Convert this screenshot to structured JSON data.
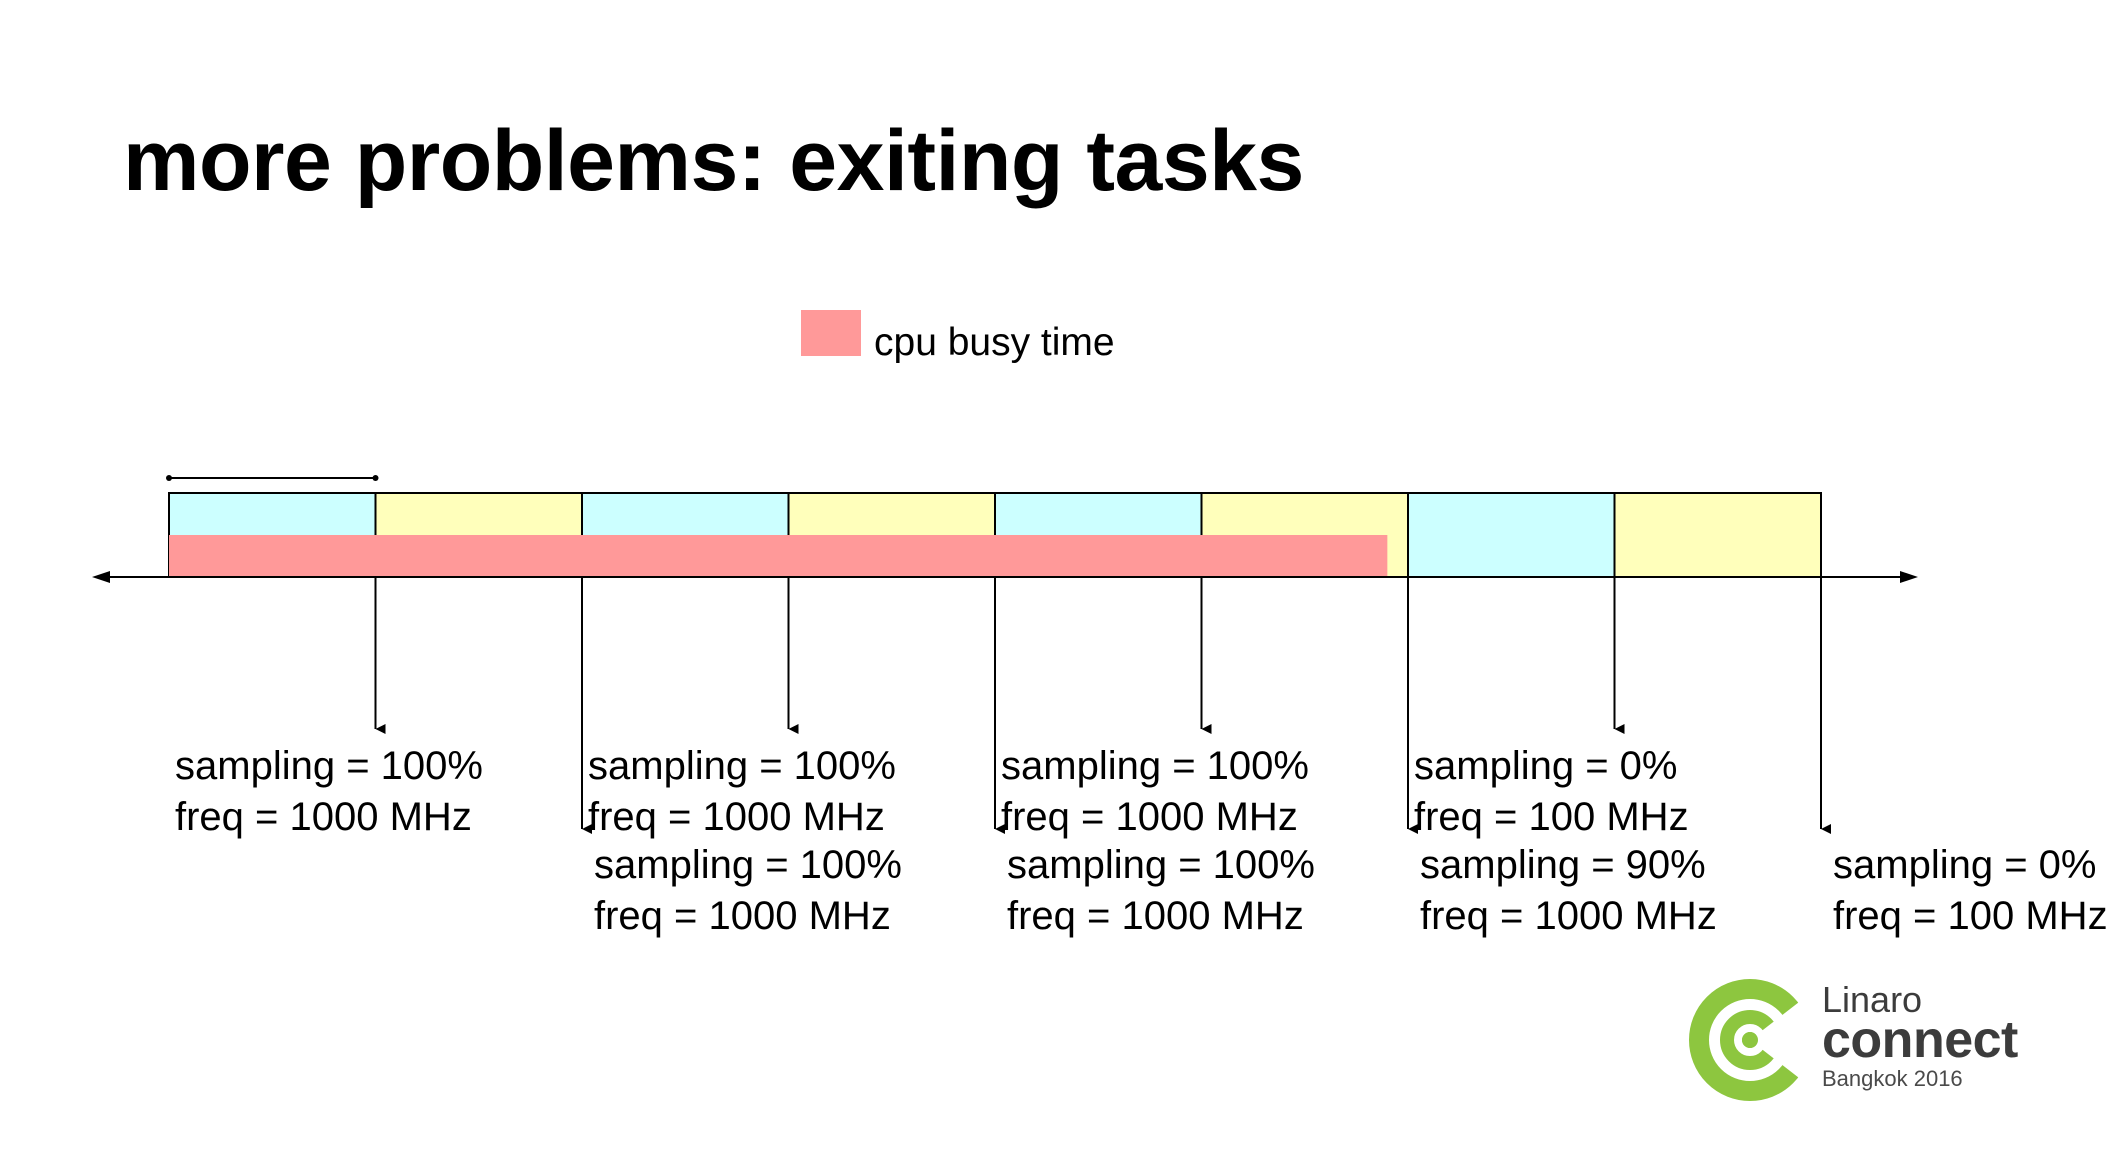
{
  "slide": {
    "title": "more problems: exiting tasks"
  },
  "legend": {
    "label": "cpu busy time",
    "color": "#FF9999"
  },
  "colors": {
    "blue_window": "#CCFFFF",
    "yellow_window": "#FFFFBB",
    "busy": "#FF9999",
    "axis": "#000000"
  },
  "timeline": {
    "window_count": 8,
    "window_colors": [
      "blue",
      "yellow",
      "blue",
      "yellow",
      "blue",
      "yellow",
      "blue",
      "yellow"
    ],
    "busy_until_window": 5.9
  },
  "samples": [
    {
      "sampling": "sampling = 100%",
      "freq": "freq = 1000 MHz"
    },
    {
      "sampling": "sampling = 100%",
      "freq": "freq = 1000 MHz"
    },
    {
      "sampling": "sampling = 100%",
      "freq": "freq = 1000 MHz"
    },
    {
      "sampling": "sampling = 100%",
      "freq": "freq = 1000 MHz"
    },
    {
      "sampling": "sampling = 100%",
      "freq": "freq = 1000 MHz"
    },
    {
      "sampling": "sampling = 90%",
      "freq": "freq = 1000 MHz"
    },
    {
      "sampling": "sampling = 0%",
      "freq": "freq = 100 MHz"
    },
    {
      "sampling": "sampling = 0%",
      "freq": "freq = 100 MHz"
    }
  ],
  "branding": {
    "name": "Linaro",
    "product": "connect",
    "event": "Bangkok 2016",
    "logo_color": "#8DC63F",
    "logo_icon": "linaro-target-logo"
  }
}
